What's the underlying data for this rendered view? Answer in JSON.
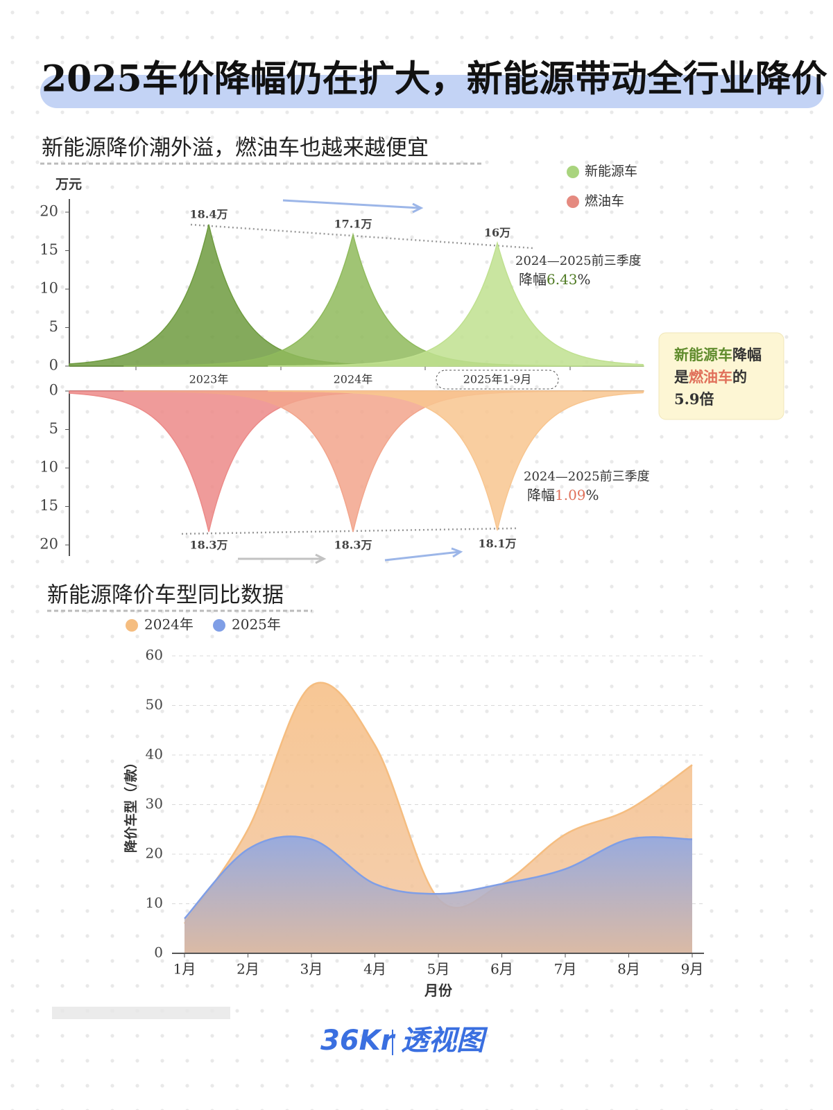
{
  "title": "2025车价降幅仍在扩大，新能源带动全行业降价",
  "chart_data": [
    {
      "type": "spike",
      "title": "新能源降价潮外溢，燃油车也越来越便宜",
      "y_unit": "万元",
      "categories": [
        "2023年",
        "2024年",
        "2025年1-9月"
      ],
      "series": [
        {
          "name": "新能源车",
          "color": "#a9d47e",
          "colors": [
            "#6e9b3f",
            "#8fba5c",
            "#bfe08f"
          ],
          "values": [
            18.4,
            17.1,
            16
          ],
          "value_labels": [
            "18.4万",
            "17.1万",
            "16万"
          ]
        },
        {
          "name": "燃油车",
          "color": "#e58a80",
          "colors": [
            "#ec8a88",
            "#f2a58c",
            "#f8c58f"
          ],
          "values": [
            18.3,
            18.3,
            18.1
          ],
          "value_labels": [
            "18.3万",
            "18.3万",
            "18.1万"
          ]
        }
      ],
      "ylim": [
        0,
        20
      ],
      "yticks": [
        0,
        5,
        10,
        15,
        20
      ],
      "annotations": [
        {
          "period": "2024—2025前三季度",
          "prefix": "降幅",
          "rate": "6.43",
          "suffix": "%"
        },
        {
          "period": "2024—2025前三季度",
          "prefix": "降幅",
          "rate": "1.09",
          "suffix": "%"
        }
      ],
      "callout": [
        [
          "新能源车",
          "降幅"
        ],
        [
          "是",
          "燃油车",
          "的"
        ],
        [
          "5.9倍"
        ]
      ]
    },
    {
      "type": "area",
      "title": "新能源降价车型同比数据",
      "x_label": "月份",
      "y_label": "降价车型（/款）",
      "categories": [
        "1月",
        "2月",
        "3月",
        "4月",
        "5月",
        "6月",
        "7月",
        "8月",
        "9月"
      ],
      "series": [
        {
          "name": "2024年",
          "color": "#f5bd80",
          "values": [
            6,
            25,
            54,
            42,
            11,
            14,
            24,
            29,
            38
          ]
        },
        {
          "name": "2025年",
          "color": "#7f9ee6",
          "values": [
            7,
            21,
            23,
            14,
            12,
            14,
            17,
            23,
            23
          ]
        }
      ],
      "ylim": [
        0,
        60
      ],
      "yticks": [
        0,
        10,
        20,
        30,
        40,
        50,
        60
      ],
      "grid": true
    }
  ],
  "footer": {
    "brand": "36Kr",
    "product": "透视图"
  }
}
